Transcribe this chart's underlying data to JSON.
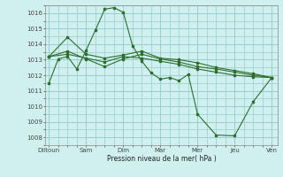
{
  "title": "",
  "xlabel": "Pression niveau de la mer( hPa )",
  "ylabel": "",
  "bg_color": "#cff0ef",
  "grid_color": "#99cccc",
  "line_color": "#2d6e2d",
  "ylim": [
    1007.5,
    1016.5
  ],
  "xtick_labels": [
    "Diitoun",
    "Sam",
    "Dim",
    "Mar",
    "Mer",
    "Jeu",
    "Ven"
  ],
  "xtick_positions": [
    0,
    2,
    4,
    6,
    8,
    10,
    12
  ],
  "ytick_labels": [
    "1008",
    "1009",
    "1010",
    "1011",
    "1012",
    "1013",
    "1014",
    "1015",
    "1016"
  ],
  "ytick_values": [
    1008,
    1009,
    1010,
    1011,
    1012,
    1013,
    1014,
    1015,
    1016
  ],
  "lines": [
    [
      1011.5,
      1013.05,
      1013.2,
      1012.4,
      1013.6,
      1014.9,
      1016.25,
      1016.35,
      1016.05,
      1013.9,
      1012.9,
      1012.15,
      1011.75,
      1011.85,
      1011.65,
      1012.05,
      1009.5,
      1008.15,
      1008.1,
      1010.3,
      1011.85
    ],
    [
      1013.2,
      1014.45,
      1013.35,
      1013.1,
      1013.3,
      1013.55,
      1013.1,
      1013.0,
      1012.8,
      1012.5,
      1012.3,
      1012.1,
      1011.85
    ],
    [
      1013.2,
      1013.55,
      1013.05,
      1012.55,
      1013.05,
      1013.35,
      1013.05,
      1012.85,
      1012.55,
      1012.4,
      1012.2,
      1012.0,
      1011.85
    ],
    [
      1013.2,
      1013.35,
      1013.1,
      1012.85,
      1013.2,
      1013.1,
      1012.9,
      1012.7,
      1012.4,
      1012.2,
      1012.0,
      1011.9,
      1011.85
    ]
  ],
  "line_x": [
    [
      0.0,
      0.5,
      1.0,
      1.5,
      2.0,
      2.5,
      3.0,
      3.5,
      4.0,
      4.5,
      5.0,
      5.5,
      6.0,
      6.5,
      7.0,
      7.5,
      8.0,
      9.0,
      10.0,
      11.0,
      12.0
    ],
    [
      0.0,
      1.0,
      2.0,
      3.0,
      4.0,
      5.0,
      6.0,
      7.0,
      8.0,
      9.0,
      10.0,
      11.0,
      12.0
    ],
    [
      0.0,
      1.0,
      2.0,
      3.0,
      4.0,
      5.0,
      6.0,
      7.0,
      8.0,
      9.0,
      10.0,
      11.0,
      12.0
    ],
    [
      0.0,
      1.0,
      2.0,
      3.0,
      4.0,
      5.0,
      6.0,
      7.0,
      8.0,
      9.0,
      10.0,
      11.0,
      12.0
    ]
  ],
  "figsize": [
    3.2,
    2.0
  ],
  "dpi": 100
}
